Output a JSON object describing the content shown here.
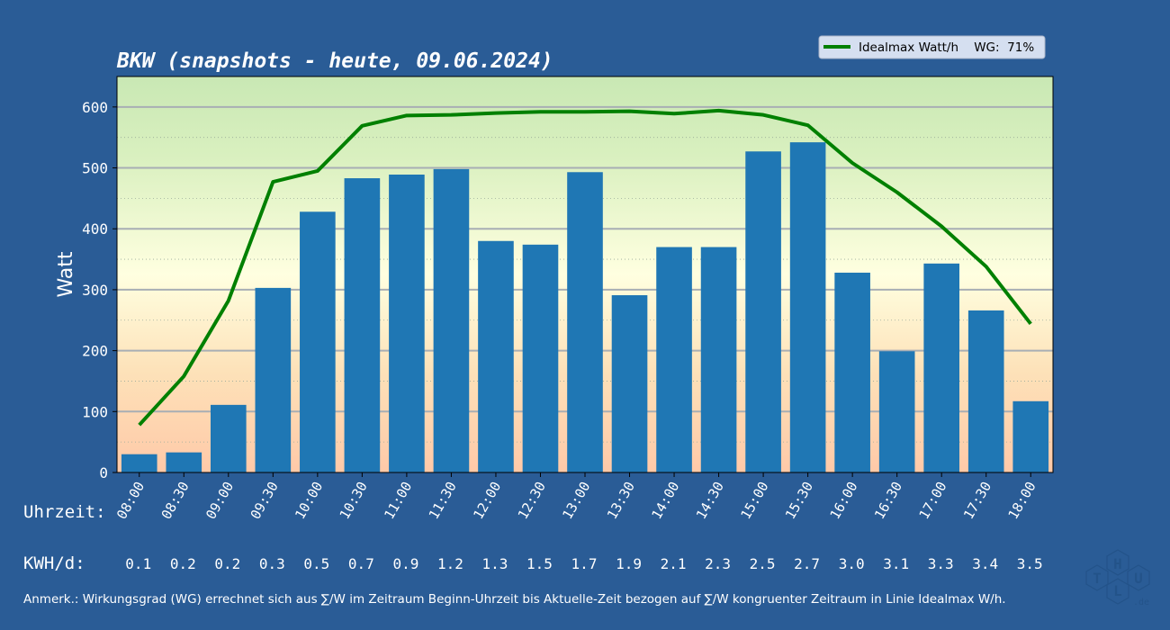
{
  "chart_data": {
    "type": "bar",
    "title": "BKW  (snapshots - heute, 09.06.2024)",
    "ylabel": "Watt",
    "ylim": [
      0,
      650
    ],
    "yticks": [
      0,
      100,
      200,
      300,
      400,
      500,
      600
    ],
    "grid": true,
    "legend_position": "top-right",
    "categories": [
      "08:00",
      "08:30",
      "09:00",
      "09:30",
      "10:00",
      "10:30",
      "11:00",
      "11:30",
      "12:00",
      "12:30",
      "13:00",
      "13:30",
      "14:00",
      "14:30",
      "15:00",
      "15:30",
      "16:00",
      "16:30",
      "17:00",
      "17:30",
      "18:00"
    ],
    "series": [
      {
        "kind": "bar",
        "color": "#1f77b4",
        "values": [
          30,
          33,
          111,
          303,
          428,
          483,
          489,
          498,
          380,
          374,
          493,
          291,
          370,
          370,
          527,
          542,
          328,
          199,
          343,
          266,
          117
        ]
      },
      {
        "kind": "line",
        "name": "Idealmax Watt/h",
        "color": "#008000",
        "values": [
          78,
          158,
          282,
          477,
          495,
          569,
          586,
          587,
          590,
          592,
          592,
          593,
          589,
          594,
          587,
          570,
          508,
          460,
          404,
          338,
          244
        ]
      }
    ],
    "legend_label": "Idealmax Watt/h    WG:  71%",
    "row_label_time": "Uhrzeit:",
    "row_label_kwh": "KWH/d:",
    "kwh_values": [
      "0.1",
      "0.2",
      "0.2",
      "0.3",
      "0.5",
      "0.7",
      "0.9",
      "1.2",
      "1.3",
      "1.5",
      "1.7",
      "1.9",
      "2.1",
      "2.3",
      "2.5",
      "2.7",
      "3.0",
      "3.1",
      "3.3",
      "3.4",
      "3.5"
    ],
    "footnote": "Anmerk.: Wirkungsgrad (WG) errechnet sich aus ∑/W im Zeitraum Beginn-Uhrzeit bis Aktuelle-Zeit bezogen auf ∑/W kongruenter Zeitraum in Linie Idealmax W/h."
  },
  "logo": {
    "letters": [
      "T",
      "H",
      "U",
      "L"
    ],
    "suffix": ".de"
  }
}
